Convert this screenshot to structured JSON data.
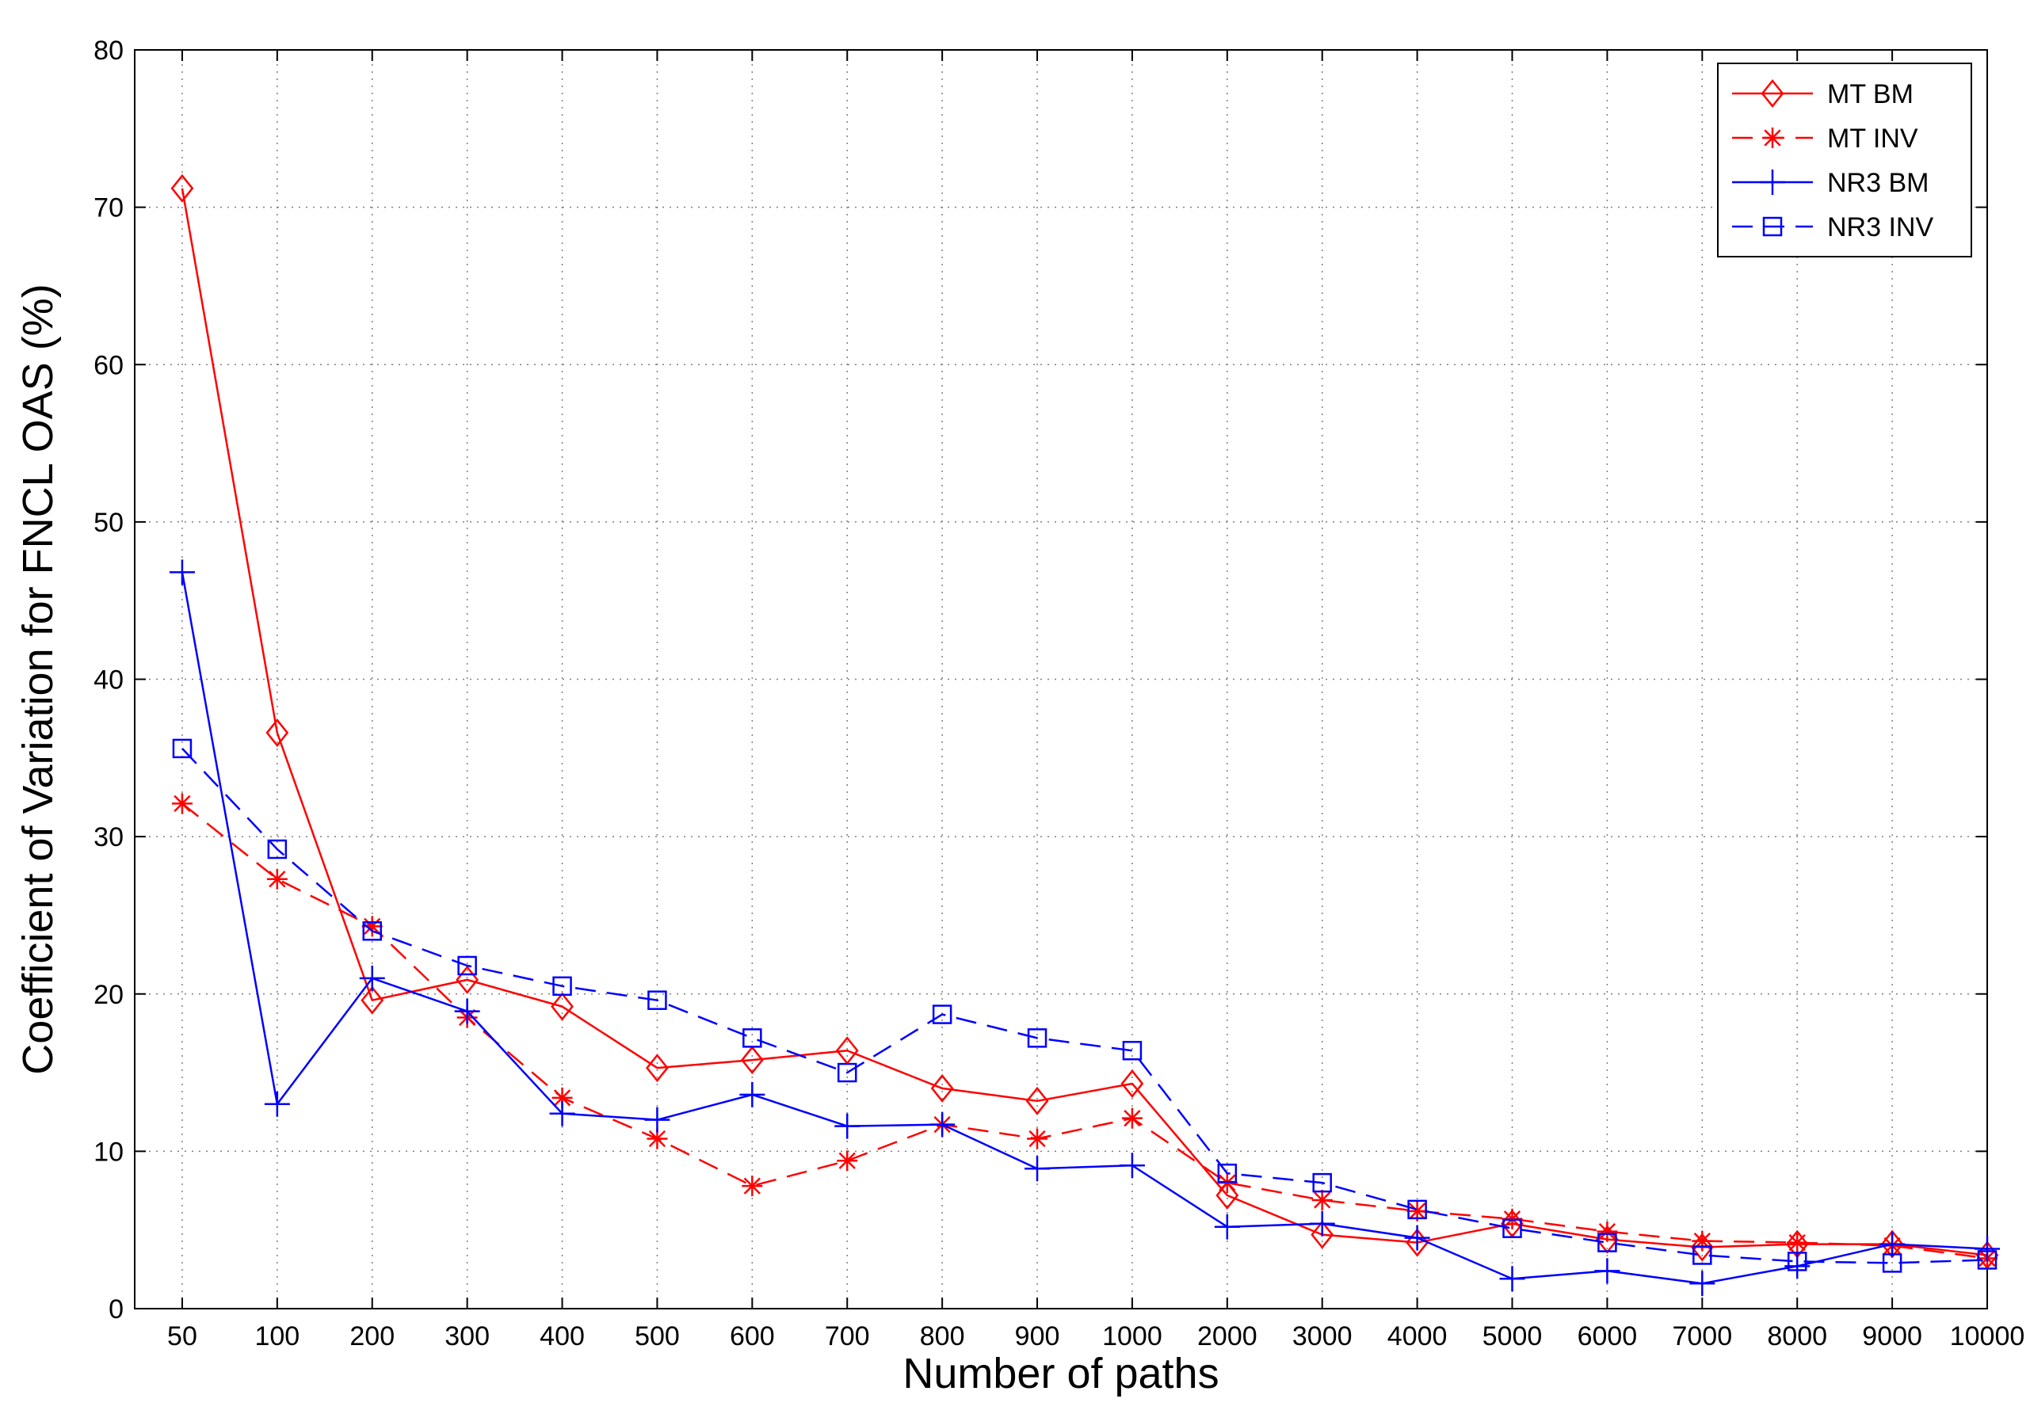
{
  "chart_data": {
    "type": "line",
    "title": "",
    "xlabel": "Number of paths",
    "ylabel": "Coefficient of Variation for FNCL OAS (%)",
    "categories": [
      "50",
      "100",
      "200",
      "300",
      "400",
      "500",
      "600",
      "700",
      "800",
      "900",
      "1000",
      "2000",
      "3000",
      "4000",
      "5000",
      "6000",
      "7000",
      "8000",
      "9000",
      "10000"
    ],
    "ylim": [
      0,
      80
    ],
    "yticks": [
      0,
      10,
      20,
      30,
      40,
      50,
      60,
      70,
      80
    ],
    "grid": true,
    "legend_position": "top-right",
    "series": [
      {
        "name": "MT BM",
        "color": "#ff0000",
        "line_style": "solid",
        "marker": "diamond",
        "values": [
          71.2,
          36.6,
          19.6,
          20.9,
          19.2,
          15.3,
          15.8,
          16.4,
          14.0,
          13.2,
          14.3,
          7.2,
          4.7,
          4.2,
          5.4,
          4.4,
          3.9,
          4.1,
          4.1,
          3.4
        ]
      },
      {
        "name": "MT INV",
        "color": "#ff0000",
        "line_style": "dashed",
        "marker": "asterisk",
        "values": [
          32.1,
          27.3,
          24.3,
          18.5,
          13.4,
          10.8,
          7.8,
          9.4,
          11.7,
          10.8,
          12.1,
          8.0,
          6.9,
          6.2,
          5.7,
          4.9,
          4.3,
          4.2,
          4.0,
          3.2
        ]
      },
      {
        "name": "NR3 BM",
        "color": "#0000ff",
        "line_style": "solid",
        "marker": "plus",
        "values": [
          46.8,
          13.0,
          21.0,
          18.9,
          12.4,
          12.0,
          13.6,
          11.6,
          11.7,
          8.9,
          9.1,
          5.2,
          5.4,
          4.5,
          1.9,
          2.4,
          1.6,
          2.7,
          4.1,
          3.8
        ]
      },
      {
        "name": "NR3 INV",
        "color": "#0000ff",
        "line_style": "dashed",
        "marker": "square",
        "values": [
          35.6,
          29.2,
          24.0,
          21.8,
          20.5,
          19.6,
          17.2,
          15.0,
          18.7,
          17.2,
          16.4,
          8.6,
          8.0,
          6.3,
          5.1,
          4.2,
          3.4,
          3.0,
          2.9,
          3.1
        ]
      }
    ]
  }
}
